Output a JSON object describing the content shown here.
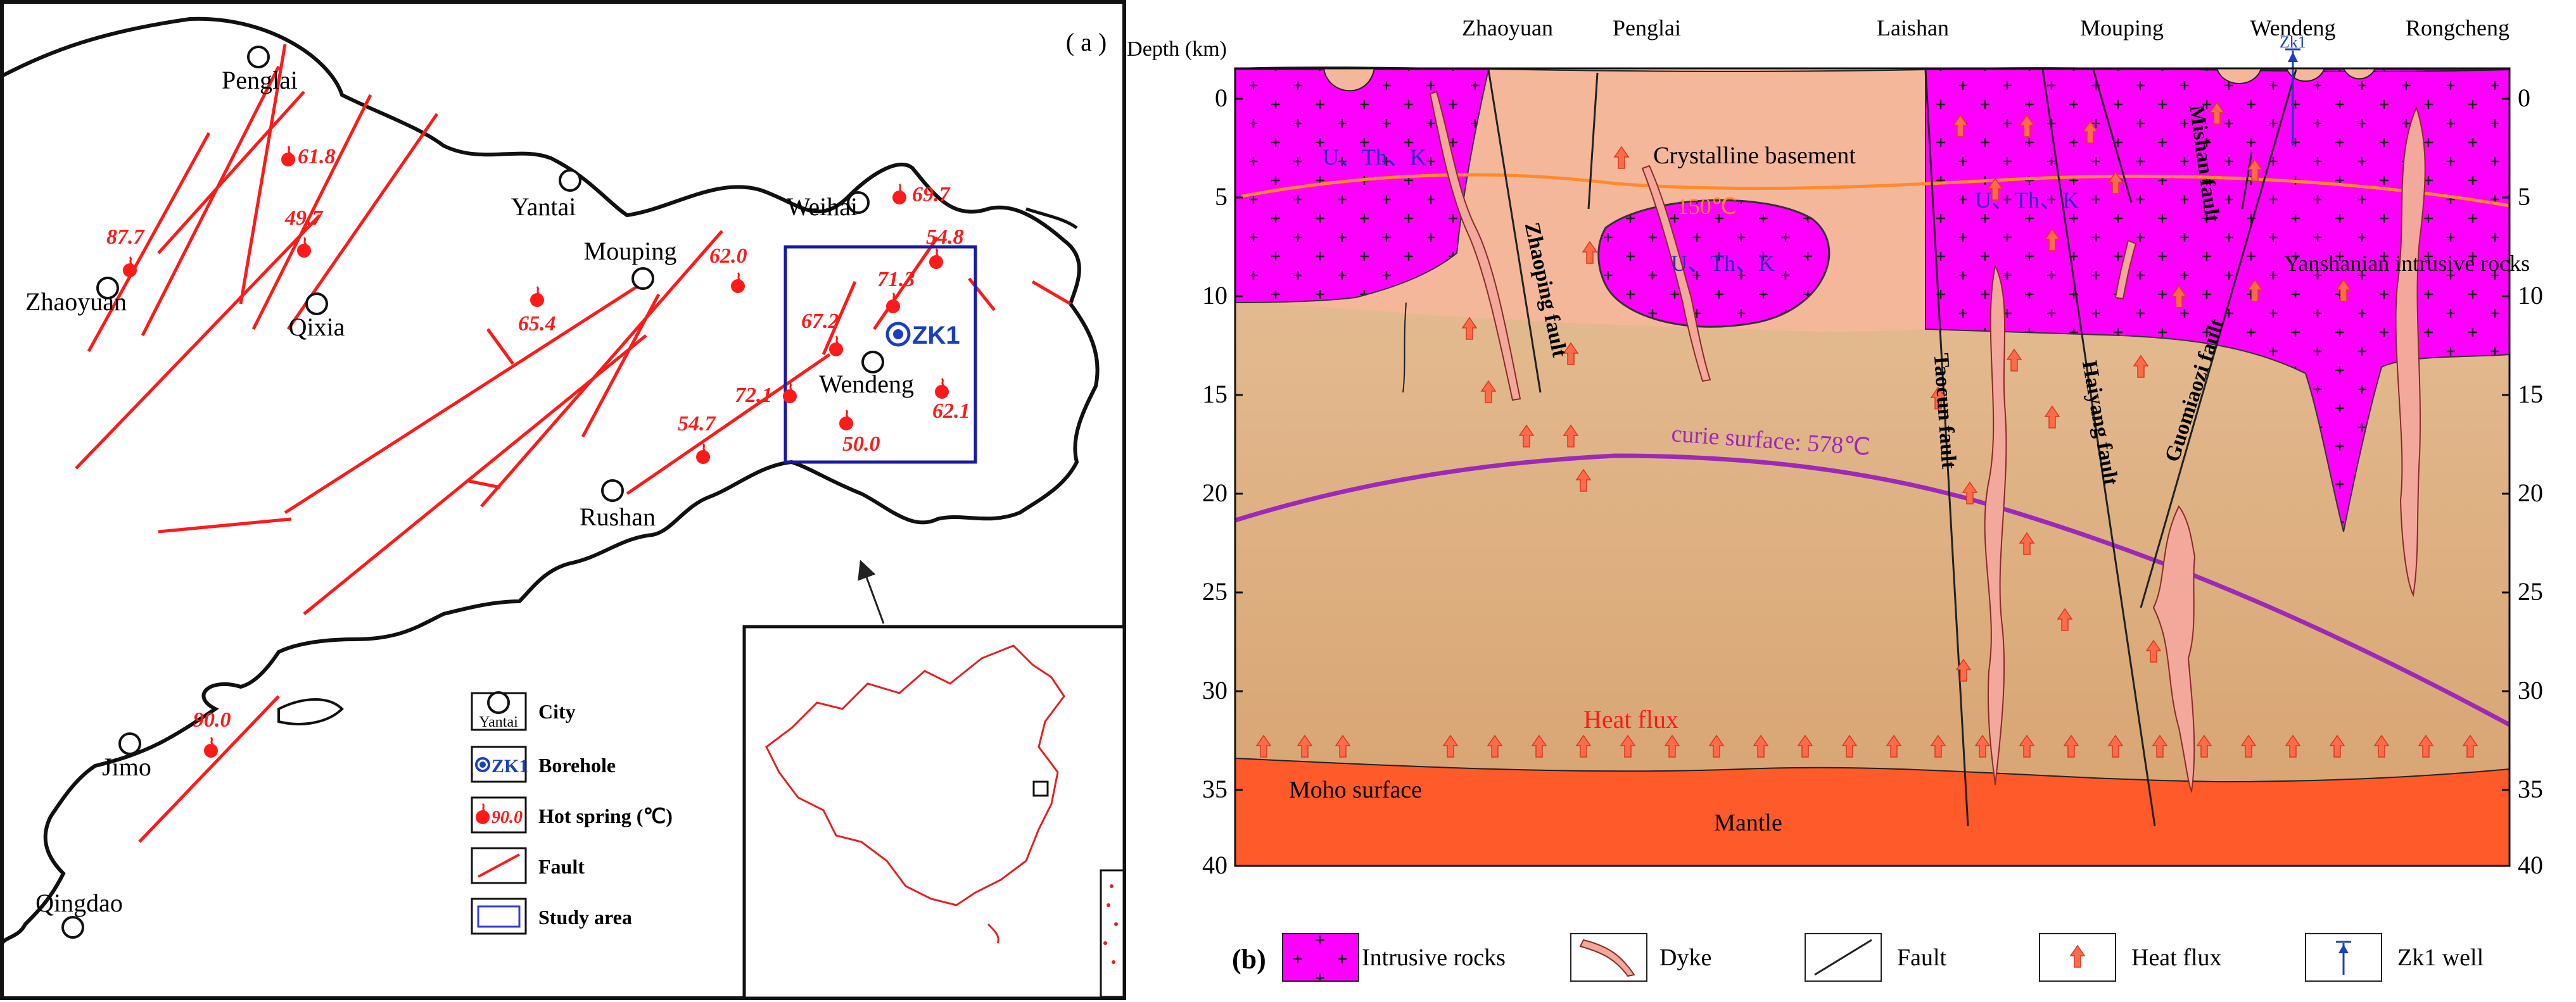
{
  "panel_a": {
    "label": "( a )",
    "cities": [
      "Penglai",
      "Yantai",
      "Weihai",
      "Mouping",
      "Zhaoyuan",
      "Qixia",
      "Wendeng",
      "Rushan",
      "Jimo",
      "Qingdao"
    ],
    "borehole": "ZK1",
    "springs": [
      "61.8",
      "49.7",
      "87.7",
      "62.0",
      "65.4",
      "69.7",
      "54.8",
      "71.3",
      "67.2",
      "72.1",
      "62.1",
      "54.7",
      "50.0",
      "90.0"
    ],
    "legend": {
      "city_icon_text": "Yantai",
      "city": "City",
      "borehole_icon_text": "ZK1",
      "borehole": "Borehole",
      "spring_icon_text": "90.0",
      "spring": "Hot spring (℃)",
      "fault": "Fault",
      "study_area": "Study area"
    }
  },
  "panel_b": {
    "label": "(b)",
    "axis_title": "Depth (km)",
    "depth_ticks": [
      "0",
      "5",
      "10",
      "15",
      "20",
      "25",
      "30",
      "35",
      "40"
    ],
    "top_labels": [
      "Zhaoyuan",
      "Penglai",
      "Laishan",
      "Mouping",
      "Wendeng",
      "Rongcheng"
    ],
    "well_label": "Zk1",
    "labels": {
      "crystalline": "Crystalline basement",
      "uthk_1": "U、Th、K",
      "uthk_2": "U、Th、K",
      "uthk_3": "U、Th、K",
      "isotherm": "150℃",
      "curie": "curie surface: 578℃",
      "heat_flux": "Heat flux",
      "moho": "Moho surface",
      "mantle": "Mantle",
      "yanshanian": "Yanshanian intrusive rocks",
      "zhaoping": "Zhaoping fault",
      "taocun": "Taocun fault",
      "haiyang": "Haiyang fault",
      "mishan": "Mishan fault",
      "guomiaozi": "Guomiaozi fault"
    },
    "legend": {
      "intrusive": "Intrusive rocks",
      "dyke": "Dyke",
      "fault": "Fault",
      "heat_flux": "Heat flux",
      "well": "Zk1 well"
    }
  },
  "colors": {
    "fault_red": "#ff1a1a",
    "magenta": "#ff00ff",
    "light_brown": "#e3b98a",
    "peach": "#f5b79a",
    "mantle": "#ff5a2a",
    "curie": "#9b2ab8",
    "isotherm": "#ff8a2a",
    "well_blue": "#1a3fbf"
  }
}
